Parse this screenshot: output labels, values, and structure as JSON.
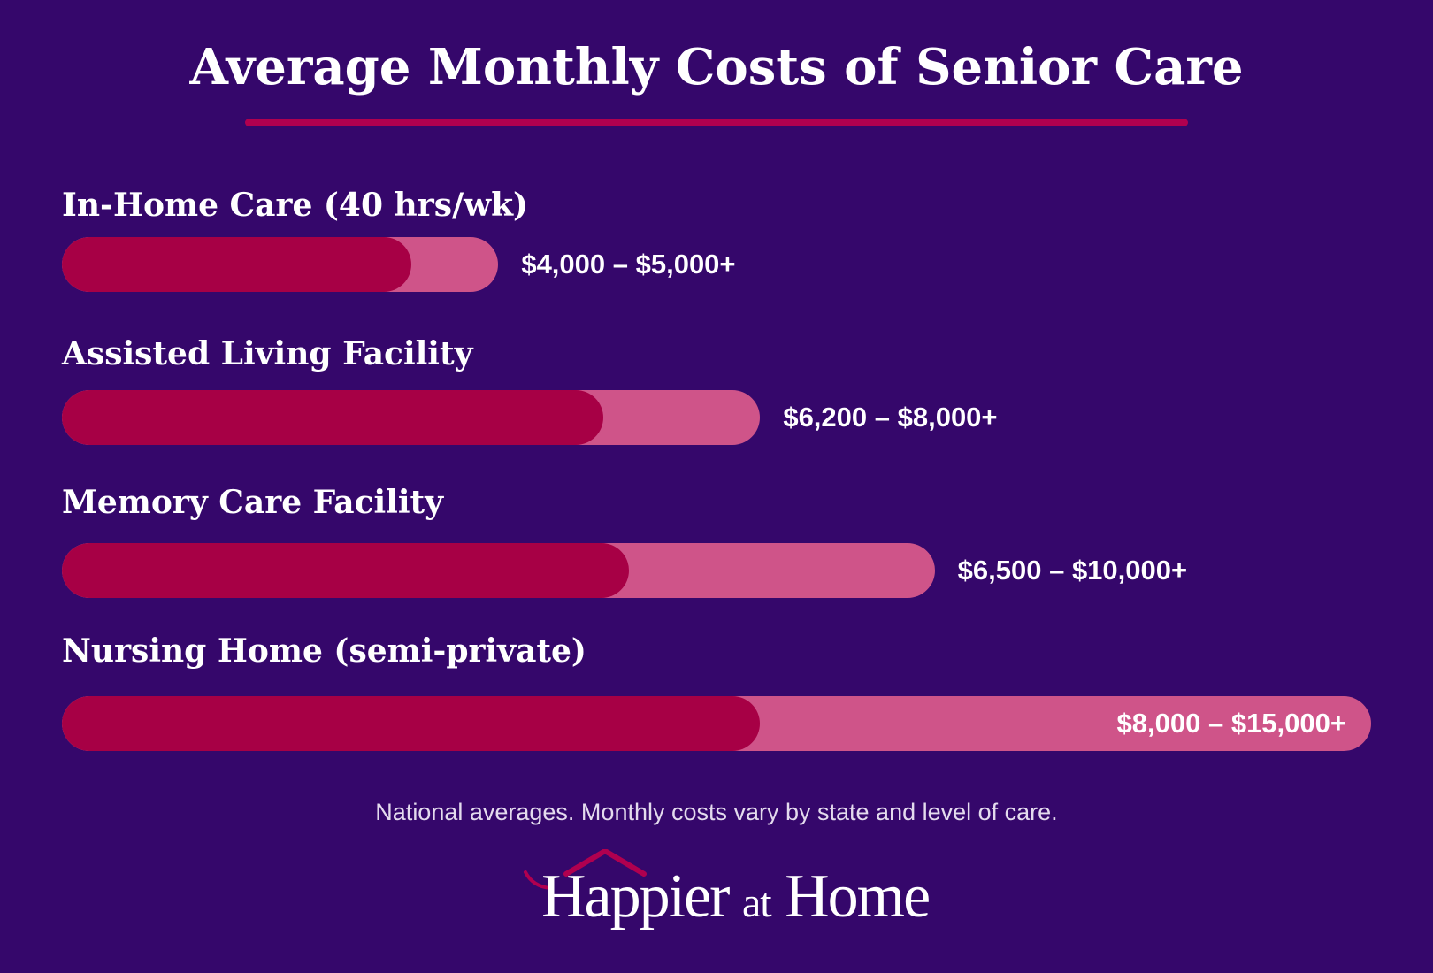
{
  "colors": {
    "background": "#35076b",
    "bar_low": "#a70045",
    "bar_high": "#cf5489",
    "accent_line": "#b0004f",
    "text": "#ffffff",
    "footnote": "#e4dbee"
  },
  "chart_data": {
    "type": "bar",
    "orientation": "horizontal",
    "title": "Average Monthly Costs of Senior Care",
    "categories": [
      "In-Home Care (40 hrs/wk)",
      "Assisted Living Facility",
      "Memory Care Facility",
      "Nursing Home (semi-private)"
    ],
    "low": [
      4000,
      6200,
      6500,
      8000
    ],
    "high": [
      5000,
      8000,
      10000,
      15000
    ],
    "range_labels": [
      "$4,000 – $5,000+",
      "$6,200 – $8,000+",
      "$6,500 – $10,000+",
      "$8,000 – $15,000+"
    ],
    "xlim": [
      0,
      15000
    ],
    "grid": false
  },
  "footnote": "National averages. Monthly costs vary by state and level of care.",
  "logo": {
    "brand": "Happier at Home",
    "icon": "house-roof-icon"
  }
}
